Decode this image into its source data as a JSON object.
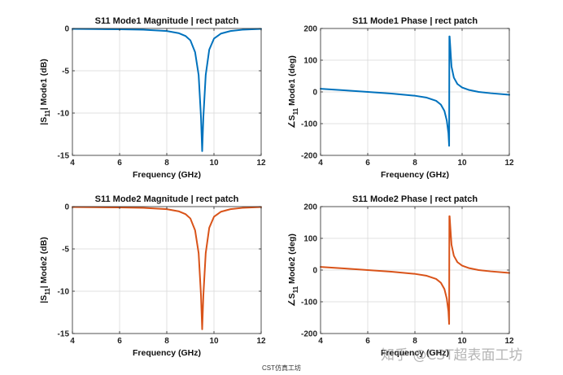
{
  "caption": "CST仿真工坊",
  "watermark": "知乎 @CST超表面工坊",
  "colors": {
    "mode1": "#0072BD",
    "mode2": "#D95319",
    "grid": "#d9d9d9",
    "axis": "#262626"
  },
  "chart_data": [
    {
      "type": "line",
      "title": "S11 Mode1 Magnitude | rect patch",
      "xlabel": "Frequency (GHz)",
      "ylabel_parts": [
        "|S",
        "11",
        "| Mode1 (dB)"
      ],
      "xlim": [
        4,
        12
      ],
      "ylim": [
        -15,
        0
      ],
      "xticks": [
        4,
        6,
        8,
        10,
        12
      ],
      "yticks": [
        0,
        -5,
        -10,
        -15
      ],
      "grid": true,
      "series": [
        {
          "color": "mode1",
          "x": [
            4,
            5,
            6,
            7,
            8,
            8.5,
            8.8,
            9.0,
            9.2,
            9.35,
            9.45,
            9.5,
            9.55,
            9.65,
            9.8,
            10.0,
            10.3,
            10.7,
            11.2,
            12
          ],
          "y": [
            -0.05,
            -0.07,
            -0.1,
            -0.15,
            -0.3,
            -0.55,
            -0.9,
            -1.4,
            -2.8,
            -5.5,
            -10.5,
            -14.5,
            -10.5,
            -5.5,
            -2.5,
            -1.2,
            -0.6,
            -0.3,
            -0.15,
            -0.05
          ]
        }
      ]
    },
    {
      "type": "line",
      "title": "S11 Mode1 Phase | rect patch",
      "xlabel": "Frequency (GHz)",
      "ylabel_parts": [
        "∠S",
        "11",
        " Mode1 (deg)"
      ],
      "xlim": [
        4,
        12
      ],
      "ylim": [
        -200,
        200
      ],
      "xticks": [
        4,
        6,
        8,
        10,
        12
      ],
      "yticks": [
        200,
        100,
        0,
        -100,
        -200
      ],
      "grid": true,
      "series": [
        {
          "color": "mode1",
          "x": [
            4,
            5,
            6,
            7,
            8,
            8.5,
            8.9,
            9.1,
            9.25,
            9.35,
            9.42,
            9.45,
            9.46,
            9.47,
            9.5,
            9.55,
            9.65,
            9.8,
            10.0,
            10.3,
            10.7,
            11.2,
            12
          ],
          "y": [
            10,
            5,
            0,
            -5,
            -12,
            -18,
            -28,
            -40,
            -60,
            -90,
            -130,
            -170,
            175,
            175,
            140,
            80,
            45,
            25,
            14,
            6,
            0,
            -4,
            -9
          ]
        }
      ]
    },
    {
      "type": "line",
      "title": "S11 Mode2 Magnitude | rect patch",
      "xlabel": "Frequency (GHz)",
      "ylabel_parts": [
        "|S",
        "11",
        "| Mode2 (dB)"
      ],
      "xlim": [
        4,
        12
      ],
      "ylim": [
        -15,
        0
      ],
      "xticks": [
        4,
        6,
        8,
        10,
        12
      ],
      "yticks": [
        0,
        -5,
        -10,
        -15
      ],
      "grid": true,
      "series": [
        {
          "color": "mode2",
          "x": [
            4,
            5,
            6,
            7,
            8,
            8.5,
            8.8,
            9.0,
            9.2,
            9.35,
            9.45,
            9.5,
            9.55,
            9.65,
            9.8,
            10.0,
            10.3,
            10.7,
            11.2,
            12
          ],
          "y": [
            -0.05,
            -0.07,
            -0.1,
            -0.15,
            -0.3,
            -0.55,
            -0.9,
            -1.4,
            -2.8,
            -5.5,
            -10.5,
            -14.5,
            -10.5,
            -5.5,
            -2.5,
            -1.2,
            -0.6,
            -0.3,
            -0.15,
            -0.05
          ]
        }
      ]
    },
    {
      "type": "line",
      "title": "S11 Mode2 Phase | rect patch",
      "xlabel": "Frequency (GHz)",
      "ylabel_parts": [
        "∠S",
        "11",
        " Mode2 (deg)"
      ],
      "xlim": [
        4,
        12
      ],
      "ylim": [
        -200,
        200
      ],
      "xticks": [
        4,
        6,
        8,
        10,
        12
      ],
      "yticks": [
        200,
        100,
        0,
        -100,
        -200
      ],
      "grid": true,
      "series": [
        {
          "color": "mode2",
          "x": [
            4,
            5,
            6,
            7,
            8,
            8.5,
            8.9,
            9.1,
            9.25,
            9.35,
            9.42,
            9.45,
            9.46,
            9.47,
            9.5,
            9.55,
            9.65,
            9.8,
            10.0,
            10.3,
            10.7,
            11.2,
            12
          ],
          "y": [
            10,
            5,
            0,
            -5,
            -12,
            -18,
            -28,
            -40,
            -60,
            -90,
            -130,
            -170,
            170,
            170,
            135,
            80,
            45,
            25,
            14,
            6,
            0,
            -4,
            -9
          ]
        }
      ]
    }
  ]
}
